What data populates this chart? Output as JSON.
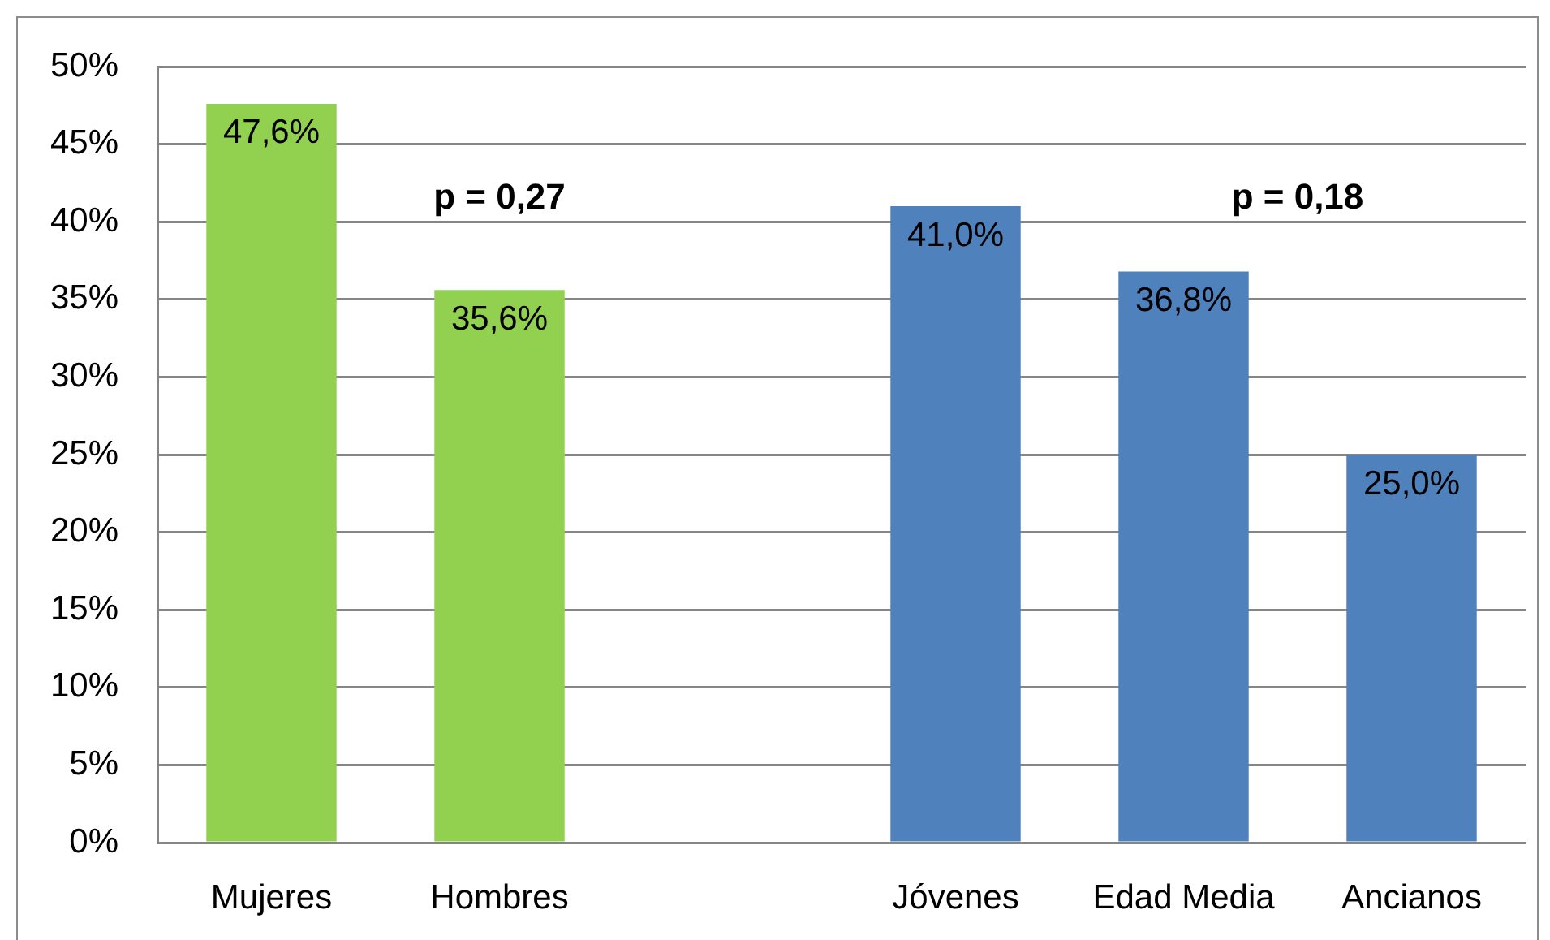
{
  "chart_data": {
    "type": "bar",
    "categories": [
      "Mujeres",
      "Hombres",
      null,
      "Jóvenes",
      "Edad Media",
      "Ancianos"
    ],
    "values": [
      47.6,
      35.6,
      null,
      41.0,
      36.8,
      25.0
    ],
    "colors": [
      "#92d050",
      "#92d050",
      null,
      "#4f81bd",
      "#4f81bd",
      "#4f81bd"
    ],
    "value_labels": [
      "47,6%",
      "35,6%",
      null,
      "41,0%",
      "36,8%",
      "25,0%"
    ],
    "ylim": [
      0,
      50
    ],
    "yticks": [
      {
        "value": 0,
        "label": "0%"
      },
      {
        "value": 5,
        "label": "5%"
      },
      {
        "value": 10,
        "label": "10%"
      },
      {
        "value": 15,
        "label": "15%"
      },
      {
        "value": 20,
        "label": "20%"
      },
      {
        "value": 25,
        "label": "25%"
      },
      {
        "value": 30,
        "label": "30%"
      },
      {
        "value": 35,
        "label": "35%"
      },
      {
        "value": 40,
        "label": "40%"
      },
      {
        "value": 45,
        "label": "45%"
      },
      {
        "value": 50,
        "label": "50%"
      }
    ],
    "grid": "y",
    "annotations": [
      "p = 0,27",
      "p = 0,18"
    ]
  }
}
